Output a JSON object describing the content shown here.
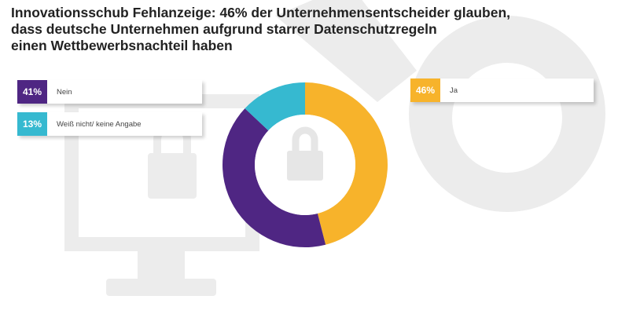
{
  "title": {
    "lines": [
      "Innovationsschub Fehlanzeige: 46% der Unternehmensentscheider glauben,",
      "dass deutsche Unternehmen aufgrund starrer Datenschutzregeln",
      "einen Wettbewerbsnachteil haben"
    ]
  },
  "legend": [
    {
      "pct": "41%",
      "label": "Nein",
      "color": "#4f2683"
    },
    {
      "pct": "13%",
      "label": "Weiß nicht/ keine Angabe",
      "color": "#36b9d0"
    },
    {
      "pct": "46%",
      "label": "Ja",
      "color": "#f7b32b"
    }
  ],
  "chart_data": {
    "type": "pie",
    "style": "donut",
    "title": "Innovationsschub Fehlanzeige: 46% der Unternehmensentscheider glauben, dass deutsche Unternehmen aufgrund starrer Datenschutzregeln einen Wettbewerbsnachteil haben",
    "series": [
      {
        "name": "Ja",
        "value": 46,
        "color": "#f7b32b"
      },
      {
        "name": "Nein",
        "value": 41,
        "color": "#4f2683"
      },
      {
        "name": "Weiß nicht/ keine Angabe",
        "value": 13,
        "color": "#36b9d0"
      }
    ],
    "unit": "%",
    "center_icon": "padlock-icon"
  }
}
